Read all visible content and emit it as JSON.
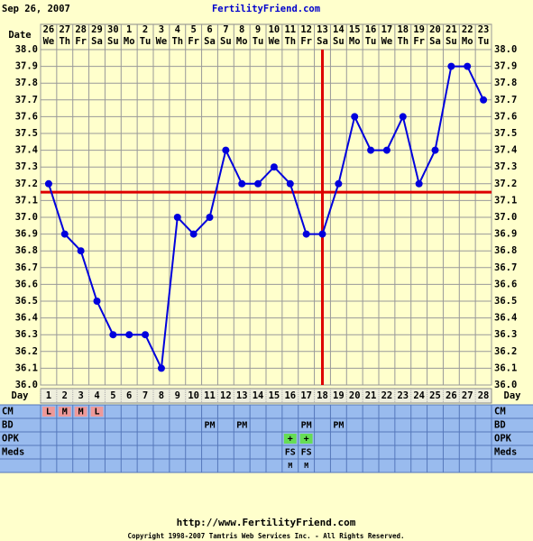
{
  "chart_data": {
    "type": "line",
    "date_stamp": "Sep 26, 2007",
    "title": "FertilityFriend.com",
    "date_label": "Date",
    "dates": [
      "26",
      "27",
      "28",
      "29",
      "30",
      "1",
      "2",
      "3",
      "4",
      "5",
      "6",
      "7",
      "8",
      "9",
      "10",
      "11",
      "12",
      "13",
      "14",
      "15",
      "16",
      "17",
      "18",
      "19",
      "20",
      "21",
      "22",
      "23"
    ],
    "weekdays": [
      "We",
      "Th",
      "Fr",
      "Sa",
      "Su",
      "Mo",
      "Tu",
      "We",
      "Th",
      "Fr",
      "Sa",
      "Su",
      "Mo",
      "Tu",
      "We",
      "Th",
      "Fr",
      "Sa",
      "Su",
      "Mo",
      "Tu",
      "We",
      "Th",
      "Fr",
      "Sa",
      "Su",
      "Mo",
      "Tu"
    ],
    "day_label": "Day",
    "categories": [
      "1",
      "2",
      "3",
      "4",
      "5",
      "6",
      "7",
      "8",
      "9",
      "10",
      "11",
      "12",
      "13",
      "14",
      "15",
      "16",
      "17",
      "18",
      "19",
      "20",
      "21",
      "22",
      "23",
      "24",
      "25",
      "26",
      "27",
      "28"
    ],
    "values": [
      37.2,
      36.9,
      36.8,
      36.5,
      36.3,
      36.3,
      36.3,
      36.1,
      37.0,
      36.9,
      37.0,
      37.4,
      37.2,
      37.2,
      37.3,
      37.2,
      36.9,
      36.9,
      37.2,
      37.6,
      37.4,
      37.4,
      37.6,
      37.2,
      37.4,
      37.9,
      37.9,
      37.7
    ],
    "color": "#0000dd",
    "ylim": [
      36,
      38
    ],
    "yticks": [
      {
        "value": 36,
        "label": "36.0"
      },
      36.1,
      36.2,
      36.3,
      36.4,
      36.5,
      36.6,
      36.7,
      36.8,
      36.9,
      {
        "value": 37,
        "label": "37.0"
      },
      37.1,
      37.2,
      37.3,
      37.4,
      37.5,
      37.6,
      37.7,
      37.8,
      37.9,
      {
        "value": 38,
        "label": "38.0"
      }
    ],
    "grid": true,
    "coverline": 37.15,
    "ovulation_day": 18,
    "marker_color": "#dd0000",
    "rows": [
      {
        "label": "CM",
        "highlight": "#ee9999",
        "entries": [
          "L",
          "M",
          "M",
          "L",
          null,
          null,
          null,
          null,
          null,
          null,
          null,
          null,
          null,
          null,
          null,
          null,
          null,
          null,
          null,
          null,
          null,
          null,
          null,
          null,
          null,
          null,
          null,
          null
        ]
      },
      {
        "label": "BD",
        "highlight": null,
        "entries": [
          null,
          null,
          null,
          null,
          null,
          null,
          null,
          null,
          null,
          null,
          "PM",
          null,
          "PM",
          null,
          null,
          null,
          "PM",
          null,
          "PM",
          null,
          null,
          null,
          null,
          null,
          null,
          null,
          null,
          null
        ]
      },
      {
        "label": "OPK",
        "highlight": "#66dd55",
        "entries": [
          null,
          null,
          null,
          null,
          null,
          null,
          null,
          null,
          null,
          null,
          null,
          null,
          null,
          null,
          null,
          "+",
          "+",
          null,
          null,
          null,
          null,
          null,
          null,
          null,
          null,
          null,
          null,
          null
        ]
      },
      {
        "label": "Meds",
        "highlight": null,
        "entries": [
          null,
          null,
          null,
          null,
          null,
          null,
          null,
          null,
          null,
          null,
          null,
          null,
          null,
          null,
          null,
          "FS",
          "FS",
          null,
          null,
          null,
          null,
          null,
          null,
          null,
          null,
          null,
          null,
          null
        ]
      },
      {
        "label": null,
        "highlight": null,
        "entries": [
          null,
          null,
          null,
          null,
          null,
          null,
          null,
          null,
          null,
          null,
          null,
          null,
          null,
          null,
          null,
          "M",
          "M",
          null,
          null,
          null,
          null,
          null,
          null,
          null,
          null,
          null,
          null,
          null
        ]
      }
    ],
    "url": "http://www.FertilityFriend.com",
    "copyright": "Copyright 1998-2007 Tamtris Web Services Inc. - All Rights Reserved."
  }
}
